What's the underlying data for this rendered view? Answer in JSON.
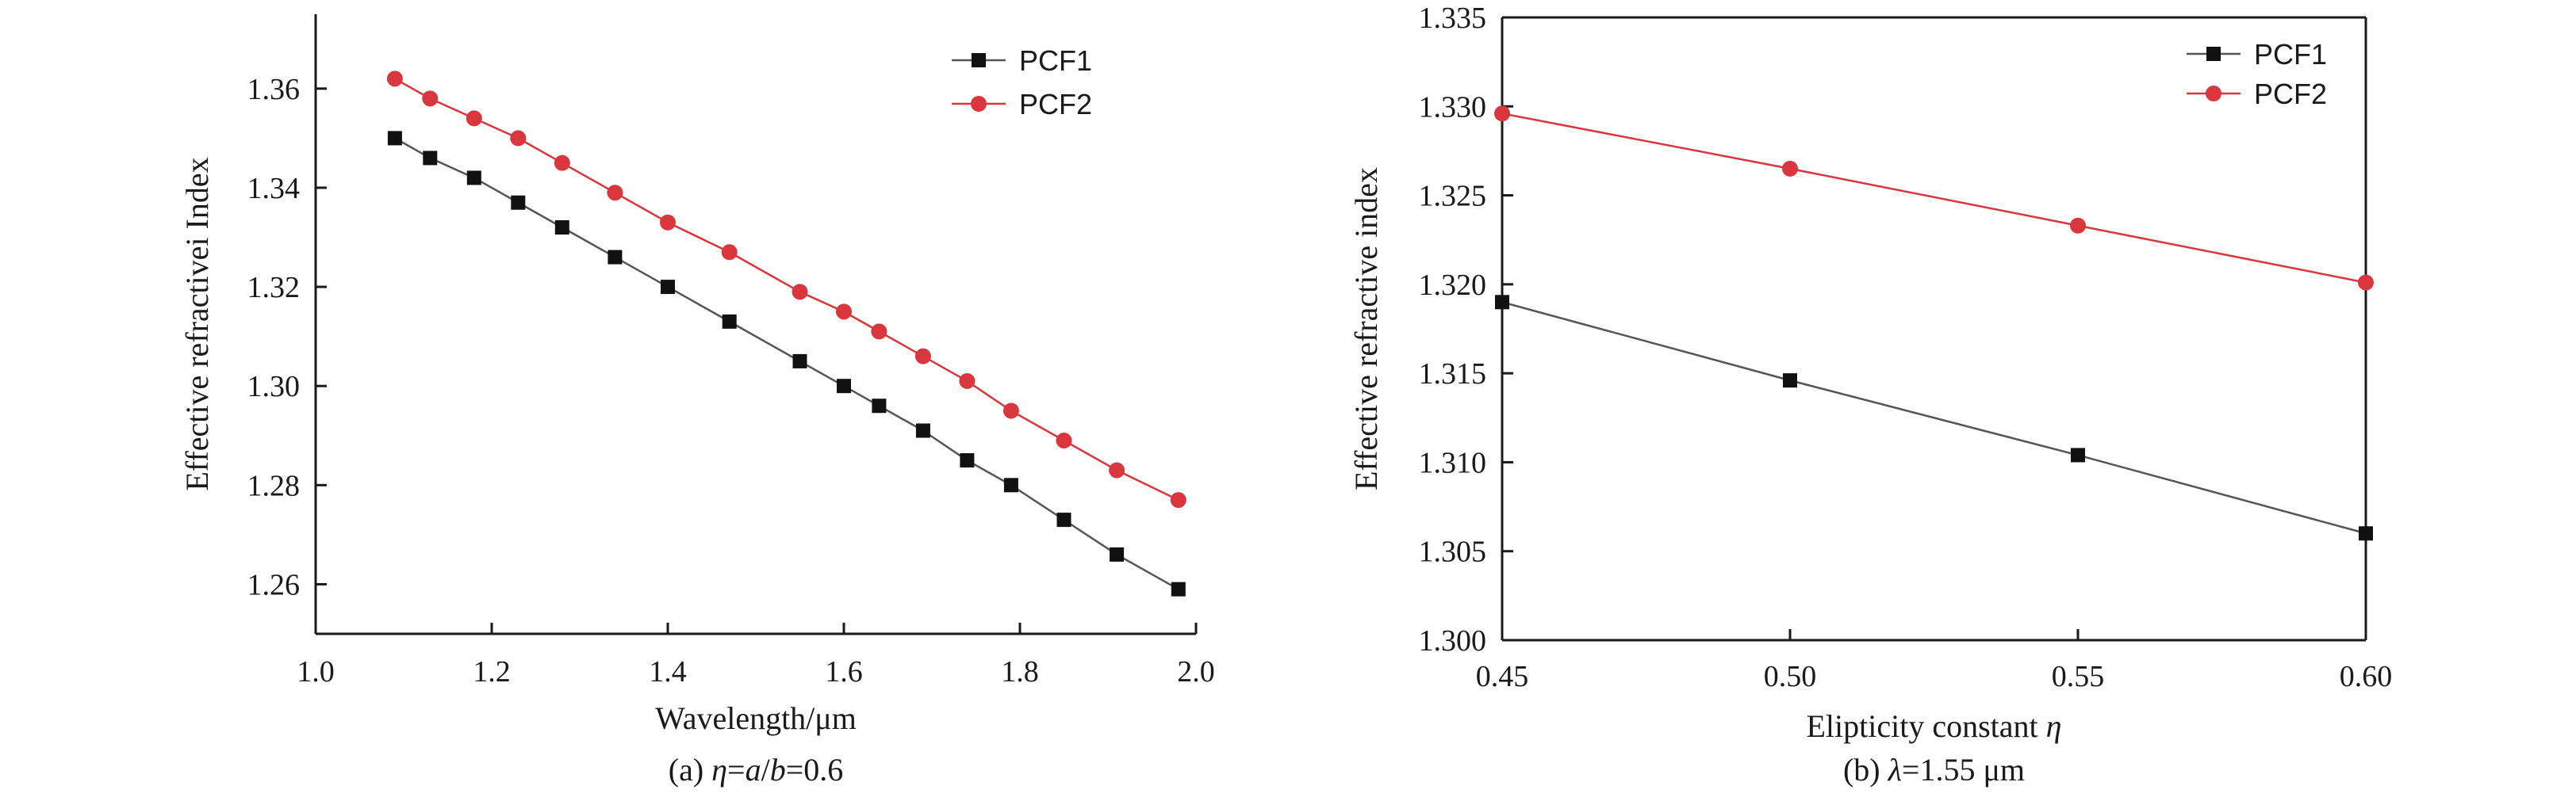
{
  "chart_data": [
    {
      "type": "line",
      "id": "a",
      "caption_parts": [
        {
          "text": "(a) ",
          "italic": false
        },
        {
          "text": "η",
          "italic": true
        },
        {
          "text": "=",
          "italic": false
        },
        {
          "text": "a",
          "italic": true
        },
        {
          "text": "/",
          "italic": false
        },
        {
          "text": "b",
          "italic": true
        },
        {
          "text": "=0.6",
          "italic": false
        }
      ],
      "xlabel": "Wavelength/μm",
      "ylabel": "Effective refractivei Index",
      "xlim": [
        1.0,
        2.0
      ],
      "ylim": [
        1.25,
        1.375
      ],
      "xticks": [
        "1.0",
        "1.2",
        "1.4",
        "1.6",
        "1.8",
        "2.0"
      ],
      "yticks": [
        "1.26",
        "1.28",
        "1.30",
        "1.32",
        "1.34",
        "1.36"
      ],
      "legend_position": "top-right",
      "series": [
        {
          "name": "PCF1",
          "marker": "square",
          "color": "#111111",
          "line_color": "#555555",
          "x": [
            1.09,
            1.13,
            1.18,
            1.23,
            1.28,
            1.34,
            1.4,
            1.47,
            1.55,
            1.6,
            1.64,
            1.69,
            1.74,
            1.79,
            1.85,
            1.91,
            1.98
          ],
          "y": [
            1.35,
            1.346,
            1.342,
            1.337,
            1.332,
            1.326,
            1.32,
            1.313,
            1.305,
            1.3,
            1.296,
            1.291,
            1.285,
            1.28,
            1.273,
            1.266,
            1.259
          ]
        },
        {
          "name": "PCF2",
          "marker": "circle",
          "color": "#d9363e",
          "line_color": "#d9363e",
          "x": [
            1.09,
            1.13,
            1.18,
            1.23,
            1.28,
            1.34,
            1.4,
            1.47,
            1.55,
            1.6,
            1.64,
            1.69,
            1.74,
            1.79,
            1.85,
            1.91,
            1.98
          ],
          "y": [
            1.362,
            1.358,
            1.354,
            1.35,
            1.345,
            1.339,
            1.333,
            1.327,
            1.319,
            1.315,
            1.311,
            1.306,
            1.301,
            1.295,
            1.289,
            1.283,
            1.277
          ]
        }
      ]
    },
    {
      "type": "line",
      "id": "b",
      "caption_parts": [
        {
          "text": "(b) ",
          "italic": false
        },
        {
          "text": "λ",
          "italic": true
        },
        {
          "text": "=1.55 μm",
          "italic": false
        }
      ],
      "xlabel_parts": [
        {
          "text": "Elipticity constant ",
          "italic": false
        },
        {
          "text": "η",
          "italic": true
        }
      ],
      "ylabel": "Effective refractive index",
      "xlim": [
        0.45,
        0.6
      ],
      "ylim": [
        1.3,
        1.335
      ],
      "xticks": [
        "0.45",
        "0.50",
        "0.55",
        "0.60"
      ],
      "yticks": [
        "1.300",
        "1.305",
        "1.310",
        "1.315",
        "1.320",
        "1.325",
        "1.330",
        "1.335"
      ],
      "legend_position": "top-right",
      "series": [
        {
          "name": "PCF1",
          "marker": "square",
          "color": "#111111",
          "line_color": "#555555",
          "x": [
            0.45,
            0.5,
            0.55,
            0.6
          ],
          "y": [
            1.319,
            1.3146,
            1.3104,
            1.306
          ]
        },
        {
          "name": "PCF2",
          "marker": "circle",
          "color": "#d9363e",
          "line_color": "#d9363e",
          "x": [
            0.45,
            0.5,
            0.55,
            0.6
          ],
          "y": [
            1.3296,
            1.3265,
            1.3233,
            1.3201
          ]
        }
      ]
    }
  ]
}
